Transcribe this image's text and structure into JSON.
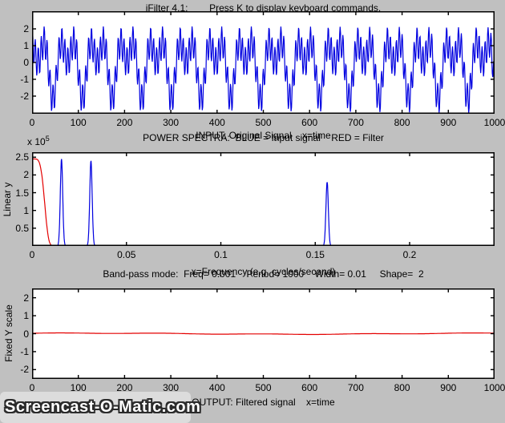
{
  "figure": {
    "watermark": "Screencast-O-Matic.com",
    "background_color": "#C0C0C0",
    "plot_background": "#FFFFFF",
    "signal_blue": "#0000E0",
    "filter_red": "#E40000"
  },
  "chart_data": [
    {
      "name": "input-signal",
      "type": "line",
      "title": "iFilter 4.1:        Press K to display keyboard commands.",
      "xlabel": "INPUT: Original Signal    x=time",
      "xlim": [
        0,
        1000
      ],
      "ylim": [
        -3.05,
        3.05
      ],
      "grid": false,
      "legend": null,
      "xtick_values": [
        0,
        100,
        200,
        300,
        400,
        500,
        600,
        700,
        800,
        900,
        1000
      ],
      "xtick_labels": [
        "0",
        "100",
        "200",
        "300",
        "400",
        "500",
        "600",
        "700",
        "800",
        "900",
        "1000"
      ],
      "ytick_values": [
        -2,
        -1,
        0,
        1,
        2
      ],
      "ytick_labels": [
        "-2",
        "-1",
        "0",
        "1",
        "2"
      ],
      "series": [
        {
          "name": "original signal",
          "color": "#0000E0",
          "kind": "sum_of_sines",
          "x_start": 0,
          "x_end": 1000,
          "n_points": 1000,
          "components": [
            {
              "freq": 0.0156,
              "amplitude": 1.1,
              "phase": 0.3
            },
            {
              "freq": 0.0312,
              "amplitude": 1.08,
              "phase": 2.2
            },
            {
              "freq": 0.1563,
              "amplitude": 0.92,
              "phase": 1.0
            }
          ]
        }
      ]
    },
    {
      "name": "power-spectra",
      "type": "line",
      "title": "POWER SPECTRA:  BLUE = Input signal    RED = Filter",
      "xlabel": "x=Frequency (e.g. cycles/second)",
      "ylabel": "Linear y",
      "y_multiplier_base": "x 10",
      "y_multiplier_exp": "5",
      "xlim": [
        0,
        0.245
      ],
      "ylim": [
        0,
        264000
      ],
      "grid": false,
      "legend": null,
      "xtick_values": [
        0,
        0.05,
        0.1,
        0.15,
        0.2
      ],
      "xtick_labels": [
        "0",
        "0.05",
        "0.1",
        "0.15",
        "0.2"
      ],
      "ytick_values": [
        50000,
        100000,
        150000,
        200000,
        250000
      ],
      "ytick_labels": [
        "0.5",
        "1",
        "1.5",
        "2",
        "2.5"
      ],
      "series": [
        {
          "name": "input signal spectrum",
          "color": "#0000E0",
          "kind": "peaks",
          "peak_sigma": 0.0009,
          "peaks": [
            {
              "x": 0.0156,
              "y": 245000
            },
            {
              "x": 0.0312,
              "y": 240000
            },
            {
              "x": 0.1563,
              "y": 180000
            }
          ]
        },
        {
          "name": "filter shape",
          "color": "#E40000",
          "kind": "supergauss",
          "max": 245000,
          "center": 0.001,
          "half_width": 0.0062,
          "shape": 2
        }
      ]
    },
    {
      "name": "filtered-output",
      "type": "line",
      "title": "Band-pass mode:  Freq= 0.001    Period= 1000    Width= 0.01     Shape=  2",
      "xlabel": "OUTPUT: Filtered signal    x=time",
      "ylabel": "Fixed Y scale",
      "xlim": [
        0,
        1000
      ],
      "ylim": [
        -2.52,
        2.52
      ],
      "grid": false,
      "legend": null,
      "xtick_values": [
        0,
        100,
        200,
        300,
        400,
        500,
        600,
        700,
        800,
        900,
        1000
      ],
      "xtick_labels": [
        "0",
        "100",
        "200",
        "300",
        "400",
        "500",
        "600",
        "700",
        "800",
        "900",
        "1000"
      ],
      "ytick_values": [
        -2,
        -1,
        0,
        1,
        2
      ],
      "ytick_labels": [
        "-2",
        "-1",
        "0",
        "1",
        "2"
      ],
      "series": [
        {
          "name": "filtered signal",
          "color": "#E40000",
          "kind": "flat_ripple",
          "level": 0,
          "x_start": 0,
          "x_end": 1000,
          "n_points": 600,
          "ripple": [
            {
              "freq": 0.0011,
              "amplitude": 0.03,
              "phase": 0.8
            },
            {
              "freq": 0.0045,
              "amplitude": 0.015,
              "phase": 0.0
            }
          ]
        }
      ]
    }
  ]
}
